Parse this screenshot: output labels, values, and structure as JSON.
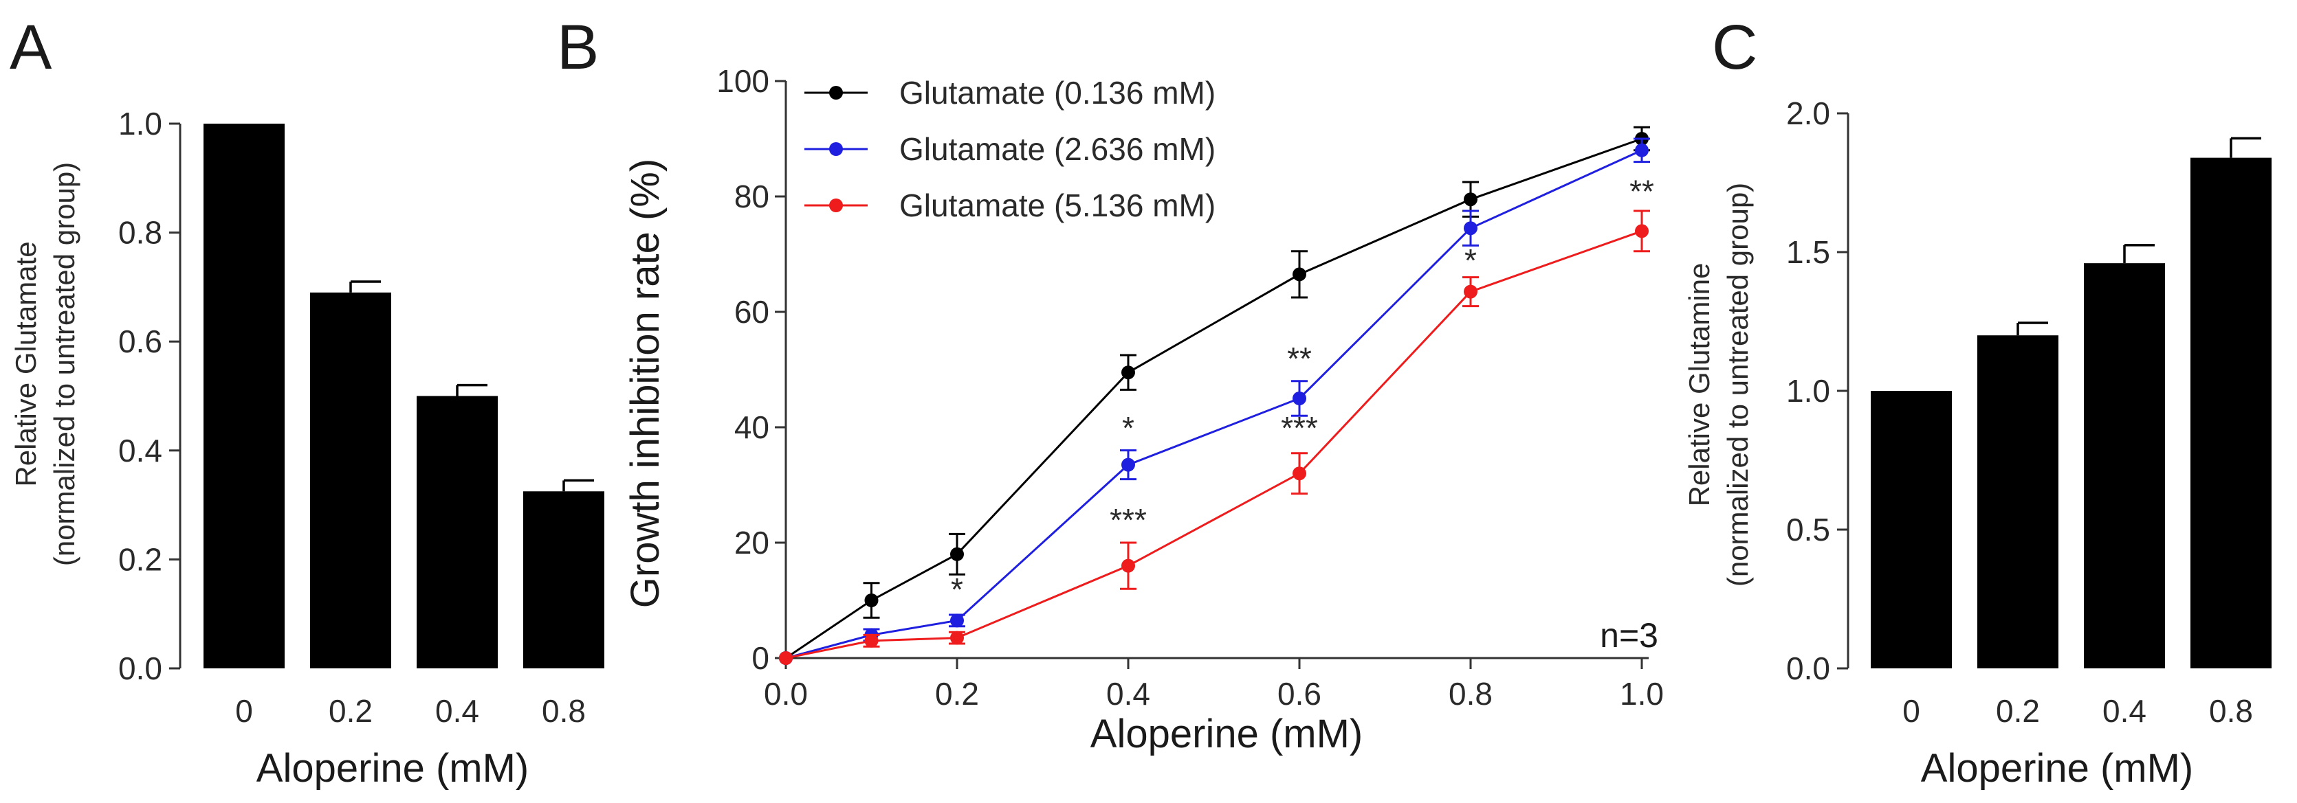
{
  "chart_data": [
    {
      "panel": "A",
      "type": "bar",
      "categories": [
        "0",
        "0.2",
        "0.4",
        "0.8"
      ],
      "values": [
        1.0,
        0.69,
        0.5,
        0.325
      ],
      "errors": [
        0.0,
        0.02,
        0.02,
        0.02
      ],
      "xlabel": "Aloperine (mM)",
      "ylabel": [
        "Relative Glutamate",
        "(normalized to untreated group)"
      ],
      "ylim": [
        0,
        1.0
      ],
      "yticks": [
        0.0,
        0.2,
        0.4,
        0.6,
        0.8,
        1.0
      ],
      "ytick_labels": [
        "0.0",
        "0.2",
        "0.4",
        "0.6",
        "0.8",
        "1.0"
      ],
      "bar_color": "#000000"
    },
    {
      "panel": "B",
      "type": "line",
      "x": [
        0.0,
        0.1,
        0.2,
        0.4,
        0.6,
        0.8,
        1.0
      ],
      "series": [
        {
          "name": "Glutamate (0.136 mM)",
          "color": "#000000",
          "values": [
            0,
            10,
            18,
            49.5,
            66.5,
            79.5,
            90
          ],
          "errors": [
            0,
            3,
            3.5,
            3,
            4,
            3,
            2
          ]
        },
        {
          "name": "Glutamate (2.636 mM)",
          "color": "#1f1fe0",
          "values": [
            0,
            4,
            6.5,
            33.5,
            45,
            74.5,
            88
          ],
          "errors": [
            0,
            1,
            1,
            2.5,
            3,
            3,
            2
          ]
        },
        {
          "name": "Glutamate (5.136 mM)",
          "color": "#ee1c1c",
          "values": [
            0,
            3,
            3.5,
            16,
            32,
            63.5,
            74
          ],
          "errors": [
            0,
            1,
            1,
            4,
            3.5,
            2.5,
            3.5
          ]
        }
      ],
      "annotations": [
        {
          "x": 0.2,
          "y": 10,
          "text": "*"
        },
        {
          "x": 0.4,
          "y": 38,
          "text": "*"
        },
        {
          "x": 0.4,
          "y": 22,
          "text": "***"
        },
        {
          "x": 0.6,
          "y": 50,
          "text": "**"
        },
        {
          "x": 0.6,
          "y": 38,
          "text": "***"
        },
        {
          "x": 0.8,
          "y": 67,
          "text": "*"
        },
        {
          "x": 1.0,
          "y": 79,
          "text": "**"
        }
      ],
      "n_label": "n=3",
      "xlabel": "Aloperine (mM)",
      "ylabel": "Growth inhibition rate (%)",
      "xlim": [
        0,
        1.0
      ],
      "ylim": [
        0,
        100
      ],
      "xticks": [
        0.0,
        0.2,
        0.4,
        0.6,
        0.8,
        1.0
      ],
      "xtick_labels": [
        "0.0",
        "0.2",
        "0.4",
        "0.6",
        "0.8",
        "1.0"
      ],
      "yticks": [
        0,
        20,
        40,
        60,
        80,
        100
      ],
      "ytick_labels": [
        "0",
        "20",
        "40",
        "60",
        "80",
        "100"
      ],
      "legend_position": "top-left"
    },
    {
      "panel": "C",
      "type": "bar",
      "categories": [
        "0",
        "0.2",
        "0.4",
        "0.8"
      ],
      "values": [
        1.0,
        1.2,
        1.46,
        1.84
      ],
      "errors": [
        0.0,
        0.045,
        0.065,
        0.07
      ],
      "xlabel": "Aloperine (mM)",
      "ylabel": [
        "Relative Glutamine",
        "(normalized to untreated group)"
      ],
      "ylim": [
        0,
        2.0
      ],
      "yticks": [
        0.0,
        0.5,
        1.0,
        1.5,
        2.0
      ],
      "ytick_labels": [
        "0.0",
        "0.5",
        "1.0",
        "1.5",
        "2.0"
      ],
      "bar_color": "#000000"
    }
  ]
}
